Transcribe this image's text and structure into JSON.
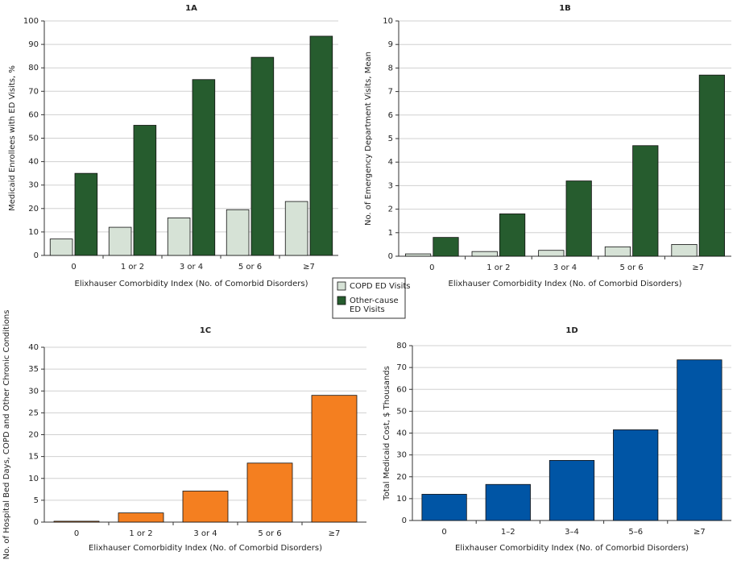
{
  "chart_data": [
    {
      "type": "bar",
      "title": "1A",
      "xlabel": "Elixhauser Comorbidity Index (No. of Comorbid Disorders)",
      "ylabel": "Medicaid Enrollees with ED Visits, %",
      "categories": [
        "0",
        "1 or 2",
        "3 or 4",
        "5 or 6",
        "≥7"
      ],
      "series": [
        {
          "name": "COPD ED Visits",
          "color": "#d6e2d6",
          "values": [
            7,
            12,
            16,
            19.5,
            23
          ]
        },
        {
          "name": "Other-cause ED Visits",
          "color": "#265c2e",
          "values": [
            35,
            55.5,
            75,
            84.5,
            93.5
          ]
        }
      ],
      "ylim": [
        0,
        100
      ],
      "yticks": [
        0,
        10,
        20,
        30,
        40,
        50,
        60,
        70,
        80,
        90,
        100
      ],
      "grid": true
    },
    {
      "type": "bar",
      "title": "1B",
      "xlabel": "Elixhauser Comorbidity Index (No. of Comorbid Disorders)",
      "ylabel": "No. of Emergency Department Visits, Mean",
      "categories": [
        "0",
        "1 or 2",
        "3 or 4",
        "5 or 6",
        "≥7"
      ],
      "series": [
        {
          "color": "#d6e2d6",
          "values": [
            0.1,
            0.2,
            0.25,
            0.4,
            0.5
          ]
        },
        {
          "color": "#265c2e",
          "values": [
            0.8,
            1.8,
            3.2,
            4.7,
            7.7
          ]
        }
      ],
      "ylim": [
        0,
        10
      ],
      "yticks": [
        0,
        1,
        2,
        3,
        4,
        5,
        6,
        7,
        8,
        9,
        10
      ],
      "grid": true
    },
    {
      "type": "bar",
      "title": "1C",
      "xlabel": "Elixhauser Comorbidity Index (No. of Comorbid Disorders)",
      "ylabel": "No. of Hospital Bed Days, COPD and Other Chronic Conditions",
      "categories": [
        "0",
        "1 or 2",
        "3 or 4",
        "5 or 6",
        "≥7"
      ],
      "series": [
        {
          "color": "#f47f20",
          "values": [
            0.2,
            2.1,
            7.1,
            13.5,
            29
          ]
        }
      ],
      "ylim": [
        0,
        40
      ],
      "yticks": [
        0,
        5,
        10,
        15,
        20,
        25,
        30,
        35,
        40
      ],
      "grid": true
    },
    {
      "type": "bar",
      "title": "1D",
      "xlabel": "Elixhauser Comorbidity Index (No. of Comorbid Disorders)",
      "ylabel": "Total Medicaid Cost, $ Thousands",
      "categories": [
        "0",
        "1–2",
        "3–4",
        "5–6",
        "≥7"
      ],
      "series": [
        {
          "color": "#0055a5",
          "values": [
            12,
            16.5,
            27.5,
            41.5,
            73.5
          ]
        }
      ],
      "ylim": [
        0,
        80
      ],
      "yticks": [
        0,
        10,
        20,
        30,
        40,
        50,
        60,
        70,
        80
      ],
      "grid": true
    }
  ]
}
